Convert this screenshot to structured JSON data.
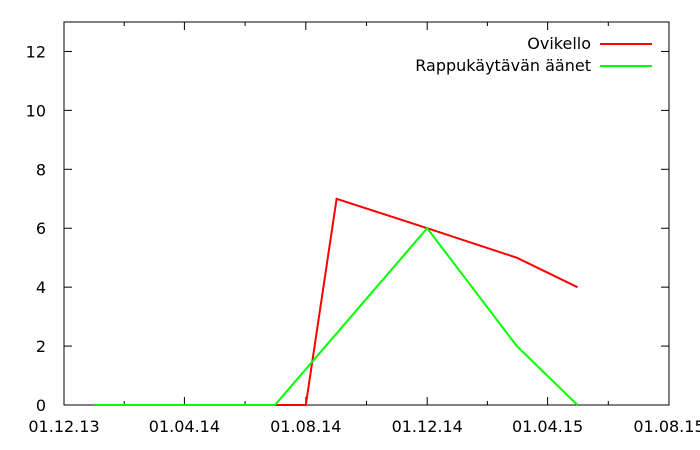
{
  "chart_data": {
    "type": "line",
    "title": "",
    "xlabel": "",
    "ylabel": "",
    "ylim": [
      0,
      13
    ],
    "yticks": [
      0,
      2,
      4,
      6,
      8,
      10,
      12
    ],
    "xlim": [
      "2013-12-01",
      "2015-08-01"
    ],
    "xticks": [
      {
        "date": "2013-12-01",
        "label": "01.12.13"
      },
      {
        "date": "2014-04-01",
        "label": "01.04.14"
      },
      {
        "date": "2014-08-01",
        "label": "01.08.14"
      },
      {
        "date": "2014-12-01",
        "label": "01.12.14"
      },
      {
        "date": "2015-04-01",
        "label": "01.04.15"
      },
      {
        "date": "2015-08-01",
        "label": "01.08.15"
      }
    ],
    "grid": false,
    "legend_position": "top-right",
    "series": [
      {
        "name": "Ovikello",
        "color": "#ff0000",
        "points": [
          {
            "x": "2014-01-01",
            "y": 0
          },
          {
            "x": "2014-02-01",
            "y": 0
          },
          {
            "x": "2014-03-01",
            "y": 0
          },
          {
            "x": "2014-04-01",
            "y": 0
          },
          {
            "x": "2014-05-01",
            "y": 0
          },
          {
            "x": "2014-06-01",
            "y": 0
          },
          {
            "x": "2014-07-01",
            "y": 0
          },
          {
            "x": "2014-08-01",
            "y": 0
          },
          {
            "x": "2014-09-01",
            "y": 7
          },
          {
            "x": "2014-12-01",
            "y": 6
          },
          {
            "x": "2015-03-01",
            "y": 5
          },
          {
            "x": "2015-05-01",
            "y": 4
          }
        ]
      },
      {
        "name": "Rappukäytävän äänet",
        "color": "#00ff00",
        "points": [
          {
            "x": "2014-01-01",
            "y": 0
          },
          {
            "x": "2014-02-01",
            "y": 0
          },
          {
            "x": "2014-03-01",
            "y": 0
          },
          {
            "x": "2014-04-01",
            "y": 0
          },
          {
            "x": "2014-05-01",
            "y": 0
          },
          {
            "x": "2014-06-01",
            "y": 0
          },
          {
            "x": "2014-07-01",
            "y": 0
          },
          {
            "x": "2014-12-01",
            "y": 6
          },
          {
            "x": "2015-03-01",
            "y": 2
          },
          {
            "x": "2015-05-01",
            "y": 0
          }
        ]
      }
    ]
  }
}
